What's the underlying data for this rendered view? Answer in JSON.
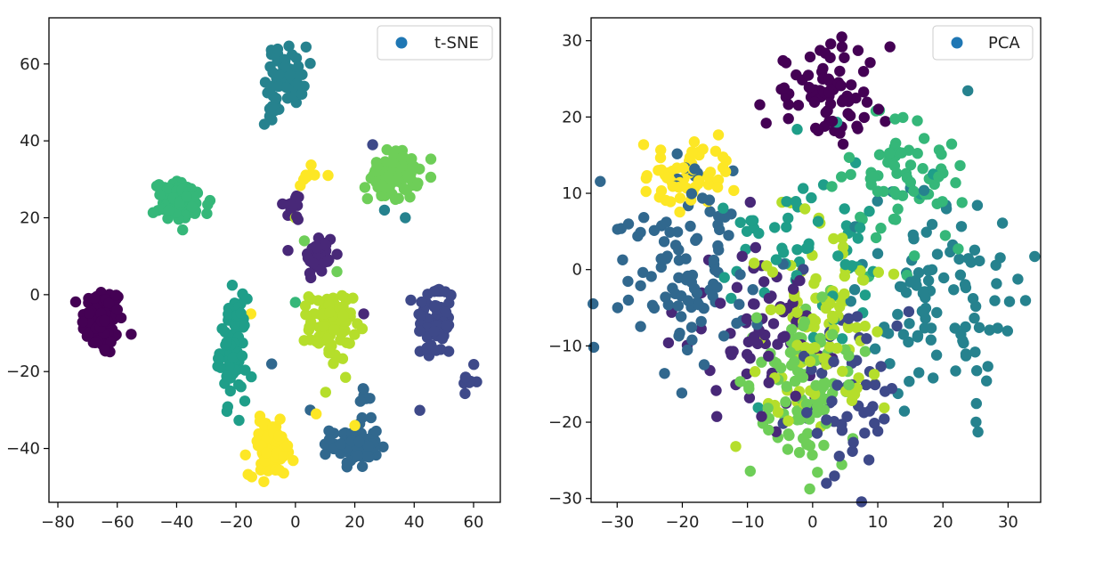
{
  "chart_data": [
    {
      "type": "scatter",
      "title": "",
      "xlabel": "",
      "ylabel": "",
      "xlim": [
        -83,
        69
      ],
      "ylim": [
        -54,
        72
      ],
      "xticks": [
        -80,
        -60,
        -40,
        -20,
        0,
        20,
        40,
        60
      ],
      "yticks": [
        -40,
        -20,
        0,
        20,
        40,
        60
      ],
      "grid": false,
      "legend": {
        "label": "t-SNE",
        "placement": "upper right",
        "marker_color": "#1f77b4"
      },
      "clusters": [
        {
          "name": "cluster-0",
          "color": "#440154",
          "center": [
            -65,
            -7
          ],
          "spread": [
            3.5,
            4.5
          ],
          "n": 95
        },
        {
          "name": "cluster-1",
          "color": "#482878",
          "center": [
            8,
            10
          ],
          "spread": [
            2.6,
            3.2
          ],
          "n": 38
        },
        {
          "name": "cluster-1b",
          "color": "#482878",
          "center": [
            -0.5,
            23
          ],
          "spread": [
            1.8,
            2.0
          ],
          "n": 16
        },
        {
          "name": "cluster-2",
          "color": "#3e4989",
          "center": [
            47,
            -7
          ],
          "spread": [
            3.3,
            5.5
          ],
          "n": 65
        },
        {
          "name": "cluster-2b",
          "color": "#3e4989",
          "center": [
            59,
            -22
          ],
          "spread": [
            1.2,
            1.6
          ],
          "n": 8
        },
        {
          "name": "cluster-3",
          "color": "#31688e",
          "center": [
            20,
            -39
          ],
          "spread": [
            4.0,
            3.0
          ],
          "n": 72
        },
        {
          "name": "cluster-3b",
          "color": "#31688e",
          "center": [
            23,
            -27
          ],
          "spread": [
            1.0,
            1.4
          ],
          "n": 6
        },
        {
          "name": "cluster-4",
          "color": "#26828e",
          "center": [
            -3,
            57
          ],
          "spread": [
            3.4,
            3.8
          ],
          "n": 60
        },
        {
          "name": "cluster-4b",
          "color": "#26828e",
          "center": [
            -8,
            47
          ],
          "spread": [
            1.5,
            1.5
          ],
          "n": 10
        },
        {
          "name": "cluster-5",
          "color": "#1f9e89",
          "center": [
            -21,
            -14
          ],
          "spread": [
            2.2,
            6.5
          ],
          "n": 80
        },
        {
          "name": "cluster-6",
          "color": "#35b779",
          "center": [
            -38,
            24
          ],
          "spread": [
            4.8,
            2.6
          ],
          "n": 85
        },
        {
          "name": "cluster-7",
          "color": "#6ece58",
          "center": [
            33,
            31
          ],
          "spread": [
            4.2,
            3.2
          ],
          "n": 78
        },
        {
          "name": "cluster-8",
          "color": "#b5de2b",
          "center": [
            12,
            -8
          ],
          "spread": [
            3.6,
            4.5
          ],
          "n": 85
        },
        {
          "name": "cluster-9",
          "color": "#fde725",
          "center": [
            -8,
            -40
          ],
          "spread": [
            3.8,
            3.5
          ],
          "n": 80
        },
        {
          "name": "cluster-9b",
          "color": "#fde725",
          "center": [
            4,
            31
          ],
          "spread": [
            1.5,
            1.2
          ],
          "n": 8
        }
      ],
      "outliers": [
        {
          "x": -15,
          "y": -5,
          "color": "#fde725"
        },
        {
          "x": -8,
          "y": -18,
          "color": "#31688e"
        },
        {
          "x": 0,
          "y": -2,
          "color": "#35b779"
        },
        {
          "x": 30,
          "y": 22,
          "color": "#26828e"
        },
        {
          "x": 37,
          "y": 20,
          "color": "#26828e"
        },
        {
          "x": 26,
          "y": 39,
          "color": "#3e4989"
        },
        {
          "x": 14,
          "y": 6,
          "color": "#6ece58"
        },
        {
          "x": 3,
          "y": 14,
          "color": "#6ece58"
        },
        {
          "x": 23,
          "y": -5,
          "color": "#482878"
        },
        {
          "x": 7,
          "y": -31,
          "color": "#fde725"
        },
        {
          "x": 20,
          "y": -34,
          "color": "#fde725"
        },
        {
          "x": 11,
          "y": 31,
          "color": "#fde725"
        },
        {
          "x": 0,
          "y": 20,
          "color": "#b5de2b"
        },
        {
          "x": 5,
          "y": -30,
          "color": "#31688e"
        }
      ]
    },
    {
      "type": "scatter",
      "title": "",
      "xlabel": "",
      "ylabel": "",
      "xlim": [
        -34,
        35
      ],
      "ylim": [
        -30.5,
        33
      ],
      "xticks": [
        -30,
        -20,
        -10,
        0,
        10,
        20,
        30
      ],
      "yticks": [
        -30,
        -20,
        -10,
        0,
        10,
        20,
        30
      ],
      "grid": false,
      "legend": {
        "label": "PCA",
        "placement": "upper right",
        "marker_color": "#1f77b4"
      },
      "clusters": [
        {
          "name": "cluster-0",
          "color": "#440154",
          "center": [
            2,
            23
          ],
          "spread": [
            4.5,
            3.2
          ],
          "n": 75
        },
        {
          "name": "cluster-1",
          "color": "#482878",
          "center": [
            -8,
            -8
          ],
          "spread": [
            6.0,
            5.5
          ],
          "n": 70
        },
        {
          "name": "cluster-2",
          "color": "#3e4989",
          "center": [
            5,
            -17
          ],
          "spread": [
            5.0,
            5.5
          ],
          "n": 55
        },
        {
          "name": "cluster-3",
          "color": "#31688e",
          "center": [
            -20,
            0
          ],
          "spread": [
            6.0,
            6.5
          ],
          "n": 105
        },
        {
          "name": "cluster-4",
          "color": "#26828e",
          "center": [
            20,
            -3
          ],
          "spread": [
            6.0,
            7.5
          ],
          "n": 105
        },
        {
          "name": "cluster-5",
          "color": "#1f9e89",
          "center": [
            0,
            2
          ],
          "spread": [
            7.0,
            7.0
          ],
          "n": 60
        },
        {
          "name": "cluster-6",
          "color": "#35b779",
          "center": [
            15,
            12
          ],
          "spread": [
            4.5,
            4.5
          ],
          "n": 70
        },
        {
          "name": "cluster-7",
          "color": "#6ece58",
          "center": [
            -1,
            -15
          ],
          "spread": [
            4.0,
            5.5
          ],
          "n": 95
        },
        {
          "name": "cluster-8",
          "color": "#b5de2b",
          "center": [
            1,
            -8
          ],
          "spread": [
            5.0,
            7.0
          ],
          "n": 100
        },
        {
          "name": "cluster-9",
          "color": "#fde725",
          "center": [
            -19,
            12
          ],
          "spread": [
            3.5,
            2.2
          ],
          "n": 60
        }
      ],
      "outliers": []
    }
  ]
}
